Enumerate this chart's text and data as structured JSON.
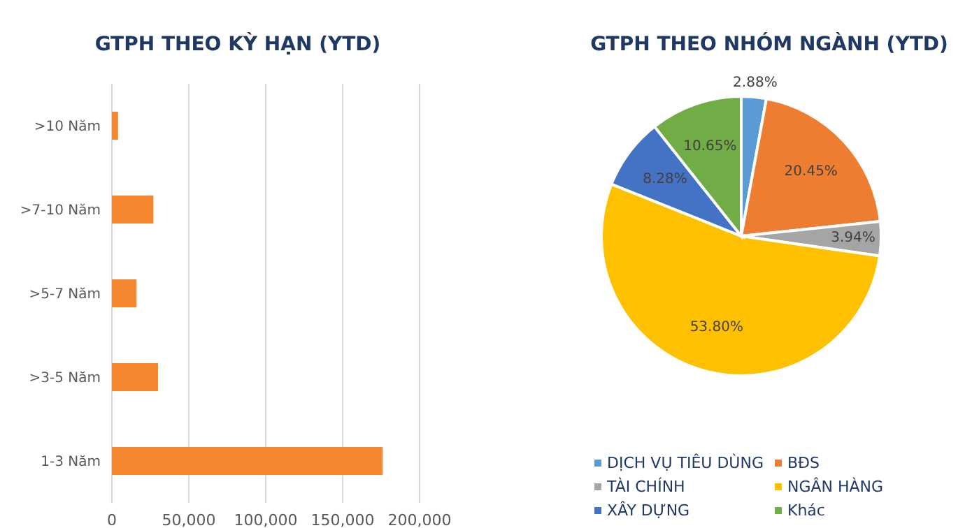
{
  "chart_data": [
    {
      "type": "bar",
      "orientation": "horizontal",
      "title": "GTPH THEO KỲ HẠN (YTD)",
      "categories": [
        ">10 Năm",
        ">7-10 Năm",
        ">5-7 Năm",
        ">3-5 Năm",
        "1-3 Năm"
      ],
      "values": [
        4000,
        27000,
        16000,
        30000,
        176000
      ],
      "color": "#f4862f",
      "xlim": [
        0,
        200000
      ],
      "xticks": [
        {
          "value": 0,
          "label": "0"
        },
        {
          "value": 50000,
          "label": "50,000"
        },
        {
          "value": 100000,
          "label": "100,000"
        },
        {
          "value": 150000,
          "label": "150,000"
        },
        {
          "value": 200000,
          "label": "200,000"
        }
      ],
      "grid": "x"
    },
    {
      "type": "pie",
      "title": "GTPH THEO NHÓM NGÀNH (YTD)",
      "categories": [
        "DỊCH VỤ TIÊU DÙNG",
        "BĐS",
        "TÀI CHÍNH",
        "NGÂN HÀNG",
        "XÂY DỰNG",
        "Khác"
      ],
      "values": [
        2.88,
        20.45,
        3.94,
        53.8,
        8.28,
        10.65
      ],
      "colors": [
        "#5b9bd5",
        "#ed7d31",
        "#a5a5a5",
        "#ffc000",
        "#4472c4",
        "#70ad47"
      ],
      "value_labels": [
        "2.88%",
        "20.45%",
        "3.94%",
        "53.80%",
        "8.28%",
        "10.65%"
      ],
      "legend": "bottom"
    }
  ]
}
